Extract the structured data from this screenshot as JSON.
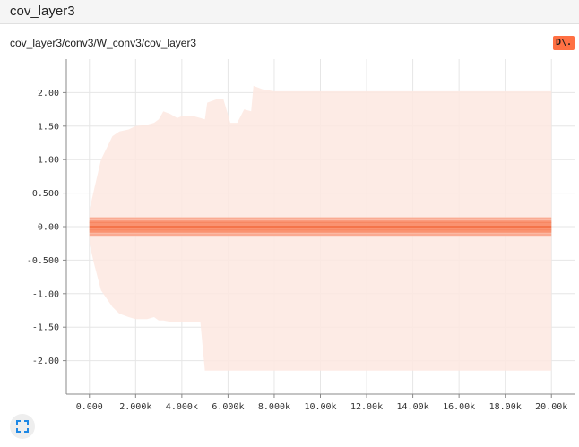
{
  "header": {
    "title": "cov_layer3"
  },
  "run_tag": "cov_layer3/conv3/W_conv3/cov_layer3",
  "badge": {
    "label": "D\\.",
    "color": "#ff7043"
  },
  "controls": {
    "fullscreen_icon": "fullscreen-icon"
  },
  "chart_data": {
    "type": "area",
    "title": "",
    "xlabel": "",
    "ylabel": "",
    "xlim": [
      -1000,
      21000
    ],
    "ylim": [
      -2.5,
      2.5
    ],
    "x_ticks": [
      0,
      2000,
      4000,
      6000,
      8000,
      10000,
      12000,
      14000,
      16000,
      18000,
      20000
    ],
    "x_tick_labels": [
      "0.000",
      "2.000k",
      "4.000k",
      "6.000k",
      "8.000k",
      "10.00k",
      "12.00k",
      "14.00k",
      "16.00k",
      "18.00k",
      "20.00k"
    ],
    "y_ticks": [
      2.0,
      1.5,
      1.0,
      0.5,
      0.0,
      -0.5,
      -1.0,
      -1.5,
      -2.0
    ],
    "y_tick_labels": [
      "2.00",
      "1.50",
      "1.00",
      "0.500",
      "0.00",
      "-0.500",
      "-1.00",
      "-1.50",
      "-2.00"
    ],
    "grid": true,
    "legend": "none",
    "colors": {
      "outer": "#fde8e1",
      "mid": "#fbb49c",
      "inner": "#f98f6c",
      "median": "#f26a3e"
    },
    "outer_band": {
      "x": [
        0,
        200,
        500,
        1000,
        1300,
        1700,
        2000,
        2500,
        2800,
        3000,
        3200,
        3500,
        3800,
        4000,
        4500,
        4800,
        5000,
        5100,
        5500,
        5600,
        5800,
        6100,
        6400,
        6700,
        7000,
        7100,
        7500,
        8000,
        10000,
        12000,
        14000,
        16000,
        18000,
        20000
      ],
      "upper": [
        0.25,
        0.55,
        1.0,
        1.35,
        1.42,
        1.45,
        1.5,
        1.52,
        1.55,
        1.6,
        1.72,
        1.68,
        1.62,
        1.65,
        1.65,
        1.62,
        1.6,
        1.85,
        1.9,
        1.9,
        1.9,
        1.55,
        1.55,
        1.75,
        1.72,
        2.1,
        2.05,
        2.02,
        2.02,
        2.02,
        2.02,
        2.02,
        2.02,
        2.02
      ],
      "lower": [
        -0.25,
        -0.55,
        -0.95,
        -1.2,
        -1.3,
        -1.35,
        -1.38,
        -1.38,
        -1.35,
        -1.4,
        -1.4,
        -1.42,
        -1.42,
        -1.42,
        -1.42,
        -1.42,
        -2.15,
        -2.15,
        -2.15,
        -2.15,
        -2.15,
        -2.15,
        -2.15,
        -2.15,
        -2.15,
        -2.15,
        -2.15,
        -2.15,
        -2.15,
        -2.15,
        -2.15,
        -2.15,
        -2.15,
        -2.15
      ]
    },
    "bands": [
      {
        "x": [
          0,
          20000
        ],
        "upper": [
          0.14,
          0.14
        ],
        "lower": [
          -0.15,
          -0.15
        ],
        "color": "#fbb49c"
      },
      {
        "x": [
          0,
          20000
        ],
        "upper": [
          0.09,
          0.09
        ],
        "lower": [
          -0.09,
          -0.09
        ],
        "color": "#f98f6c"
      }
    ],
    "median": {
      "x": [
        0,
        20000
      ],
      "y": [
        0.0,
        0.0
      ]
    }
  }
}
